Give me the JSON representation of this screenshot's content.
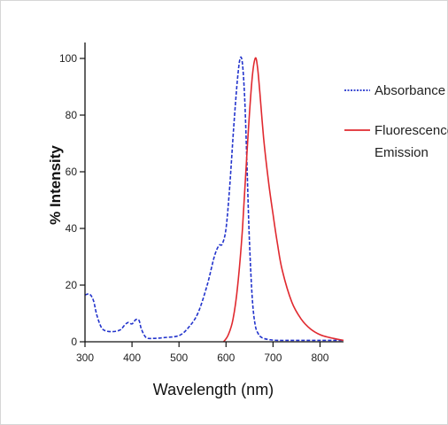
{
  "chart_data": {
    "type": "line",
    "xlabel": "Wavelength (nm)",
    "ylabel": "% Intensity",
    "xlim": [
      300,
      850
    ],
    "ylim": [
      0,
      100
    ],
    "x_ticks": [
      300,
      400,
      500,
      600,
      700,
      800
    ],
    "y_ticks": [
      0,
      20,
      40,
      60,
      80,
      100
    ],
    "grid": false,
    "legend_position": "right",
    "series": [
      {
        "name": "Absorbance",
        "color": "#2233cc",
        "style": "dotted",
        "x": [
          300,
          310,
          318,
          325,
          335,
          345,
          360,
          375,
          385,
          392,
          400,
          408,
          415,
          420,
          430,
          445,
          470,
          500,
          520,
          540,
          560,
          575,
          585,
          592,
          600,
          608,
          616,
          624,
          630,
          635,
          640,
          645,
          650,
          656,
          662,
          668,
          676,
          690,
          710,
          750,
          800,
          850
        ],
        "y": [
          16.5,
          16.8,
          14.5,
          9.5,
          5,
          3.8,
          3.6,
          4.2,
          6,
          6.8,
          6.3,
          7.8,
          7.5,
          4.5,
          1.5,
          1.2,
          1.5,
          2.2,
          5,
          10,
          20,
          30,
          34,
          34.5,
          40,
          55,
          75,
          92,
          100,
          98,
          85,
          60,
          35,
          15,
          6,
          3,
          1.5,
          0.8,
          0.5,
          0.5,
          0.5,
          0.5
        ]
      },
      {
        "name": "Fluorescence Emission",
        "color": "#e0292f",
        "style": "solid",
        "x": [
          595,
          605,
          615,
          625,
          635,
          645,
          655,
          662,
          667,
          672,
          680,
          690,
          700,
          710,
          720,
          740,
          760,
          780,
          800,
          820,
          850
        ],
        "y": [
          0,
          2.5,
          8,
          20,
          40,
          68,
          92,
          100,
          97,
          88,
          72,
          57,
          45,
          34,
          25,
          14,
          8,
          4.5,
          2.5,
          1.5,
          0.5
        ]
      }
    ]
  }
}
